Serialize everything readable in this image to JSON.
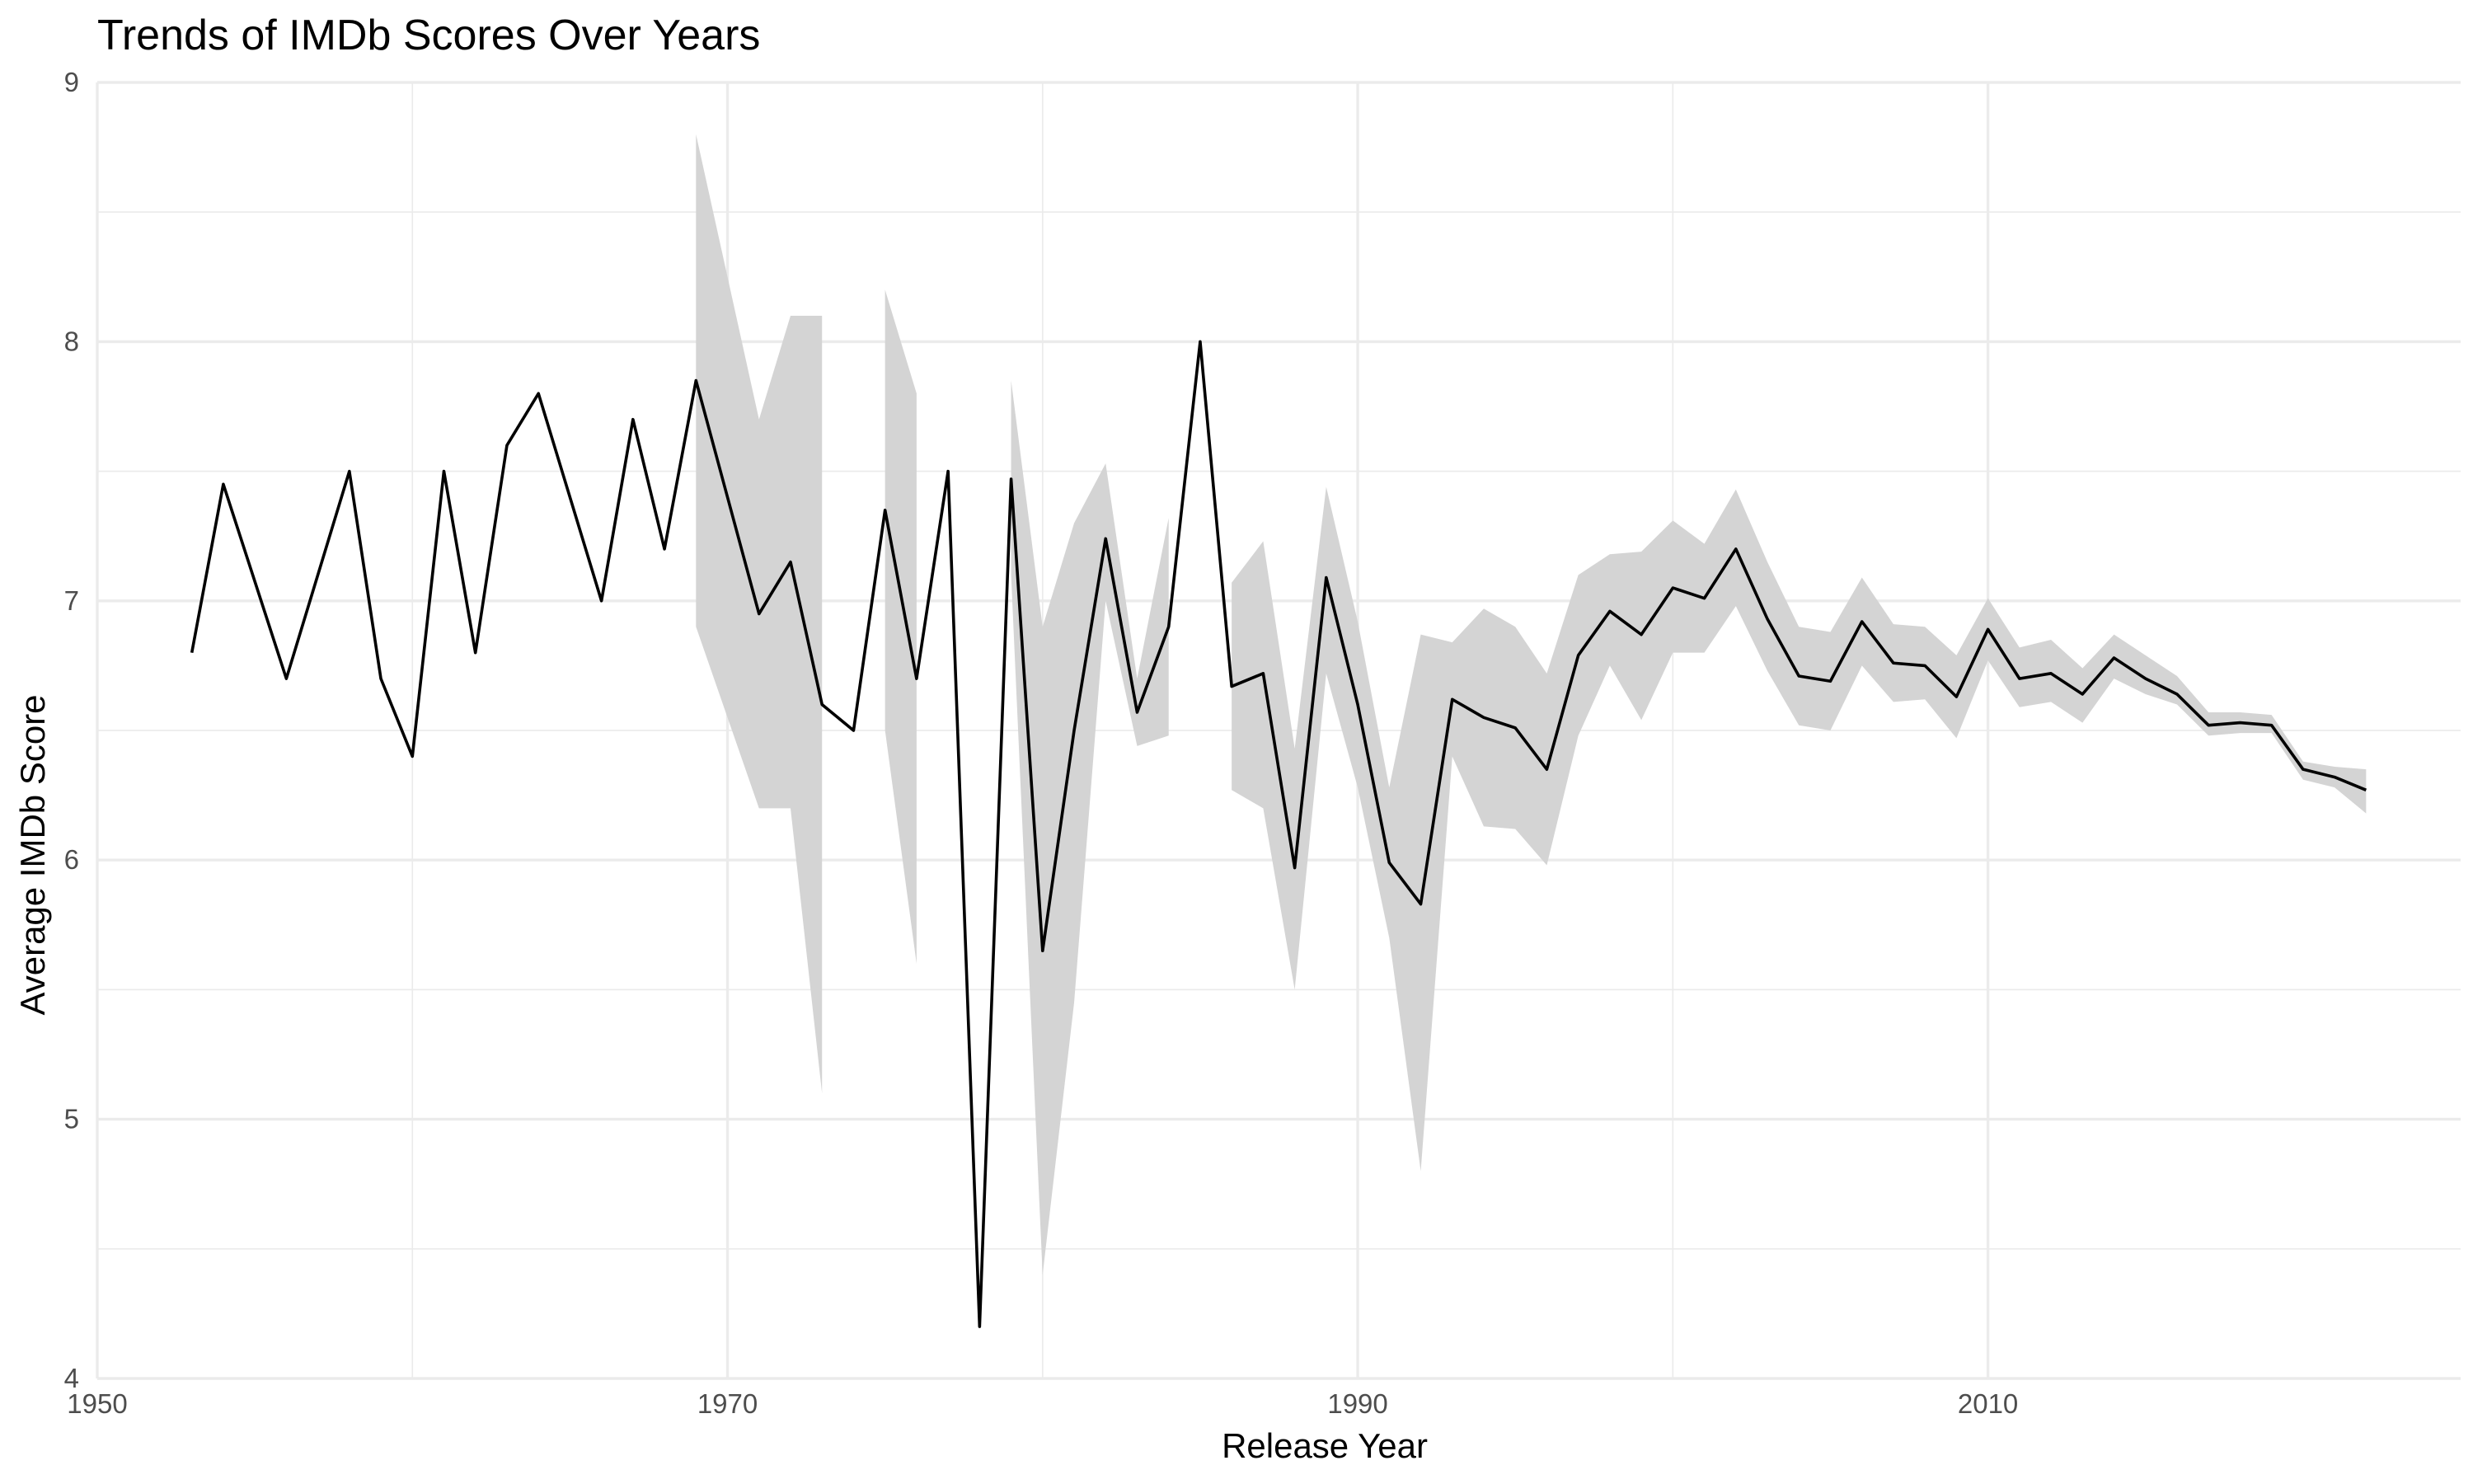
{
  "chart_data": {
    "type": "line",
    "title": "Trends of IMDb Scores Over Years",
    "xlabel": "Release Year",
    "ylabel": "Average IMDb Score",
    "xlim": [
      1950,
      2025
    ],
    "ylim": [
      4,
      9
    ],
    "x_ticks": [
      1950,
      1970,
      1990,
      2010
    ],
    "y_ticks": [
      4,
      5,
      6,
      7,
      8,
      9
    ],
    "grid": true,
    "legend": "none",
    "colors": {
      "line": "#000000",
      "ribbon": "#d4d4d4",
      "grid": "#ebebeb",
      "tick_text": "#4d4d4d"
    },
    "series": [
      {
        "x": [
          1953,
          1954,
          1956,
          1958,
          1959,
          1960,
          1961,
          1962,
          1963,
          1964,
          1966,
          1967,
          1968,
          1969,
          1970,
          1971,
          1972,
          1973,
          1974,
          1975,
          1976,
          1977,
          1978,
          1979,
          1980,
          1981,
          1982,
          1983,
          1984,
          1985,
          1986,
          1987,
          1988,
          1989,
          1990,
          1991,
          1992,
          1993,
          1994,
          1995,
          1996,
          1997,
          1998,
          1999,
          2000,
          2001,
          2002,
          2003,
          2004,
          2005,
          2006,
          2007,
          2008,
          2009,
          2010,
          2011,
          2012,
          2013,
          2014,
          2015,
          2016,
          2017,
          2018,
          2019,
          2020,
          2021,
          2022
        ],
        "y": [
          6.8,
          7.45,
          6.7,
          7.5,
          6.7,
          6.4,
          7.5,
          6.8,
          7.6,
          7.8,
          7.0,
          7.7,
          7.2,
          7.85,
          7.4,
          6.95,
          7.15,
          6.6,
          6.5,
          7.35,
          6.7,
          7.5,
          4.2,
          7.47,
          5.65,
          6.5,
          7.24,
          6.57,
          6.9,
          8.0,
          6.67,
          6.72,
          5.97,
          7.09,
          6.6,
          5.99,
          5.83,
          6.62,
          6.55,
          6.51,
          6.35,
          6.79,
          6.96,
          6.87,
          7.05,
          7.01,
          7.2,
          6.93,
          6.71,
          6.69,
          6.92,
          6.76,
          6.75,
          6.63,
          6.89,
          6.7,
          6.72,
          6.64,
          6.78,
          6.7,
          6.64,
          6.52,
          6.53,
          6.52,
          6.35,
          6.32,
          6.27
        ],
        "band_lower": [
          null,
          null,
          null,
          null,
          null,
          null,
          null,
          null,
          null,
          null,
          null,
          null,
          null,
          6.9,
          6.55,
          6.2,
          6.2,
          5.1,
          null,
          6.5,
          5.6,
          null,
          null,
          7.1,
          4.4,
          5.45,
          7.0,
          6.44,
          6.48,
          null,
          6.27,
          6.2,
          5.5,
          6.72,
          6.28,
          5.7,
          4.8,
          6.4,
          6.13,
          6.12,
          5.98,
          6.48,
          6.75,
          6.54,
          6.8,
          6.8,
          6.98,
          6.73,
          6.52,
          6.5,
          6.75,
          6.61,
          6.62,
          6.47,
          6.77,
          6.59,
          6.61,
          6.53,
          6.7,
          6.64,
          6.6,
          6.48,
          6.49,
          6.49,
          6.31,
          6.28,
          6.18
        ],
        "band_upper": [
          null,
          null,
          null,
          null,
          null,
          null,
          null,
          null,
          null,
          null,
          null,
          null,
          null,
          8.8,
          8.25,
          7.7,
          8.1,
          8.1,
          null,
          8.2,
          7.8,
          null,
          null,
          7.85,
          6.9,
          7.3,
          7.53,
          6.7,
          7.32,
          null,
          7.07,
          7.23,
          6.43,
          7.44,
          6.92,
          6.28,
          6.87,
          6.84,
          6.97,
          6.9,
          6.72,
          7.1,
          7.18,
          7.19,
          7.31,
          7.22,
          7.43,
          7.15,
          6.9,
          6.88,
          7.09,
          6.91,
          6.9,
          6.79,
          7.01,
          6.82,
          6.85,
          6.74,
          6.87,
          6.79,
          6.71,
          6.57,
          6.57,
          6.56,
          6.38,
          6.36,
          6.35
        ]
      }
    ]
  }
}
